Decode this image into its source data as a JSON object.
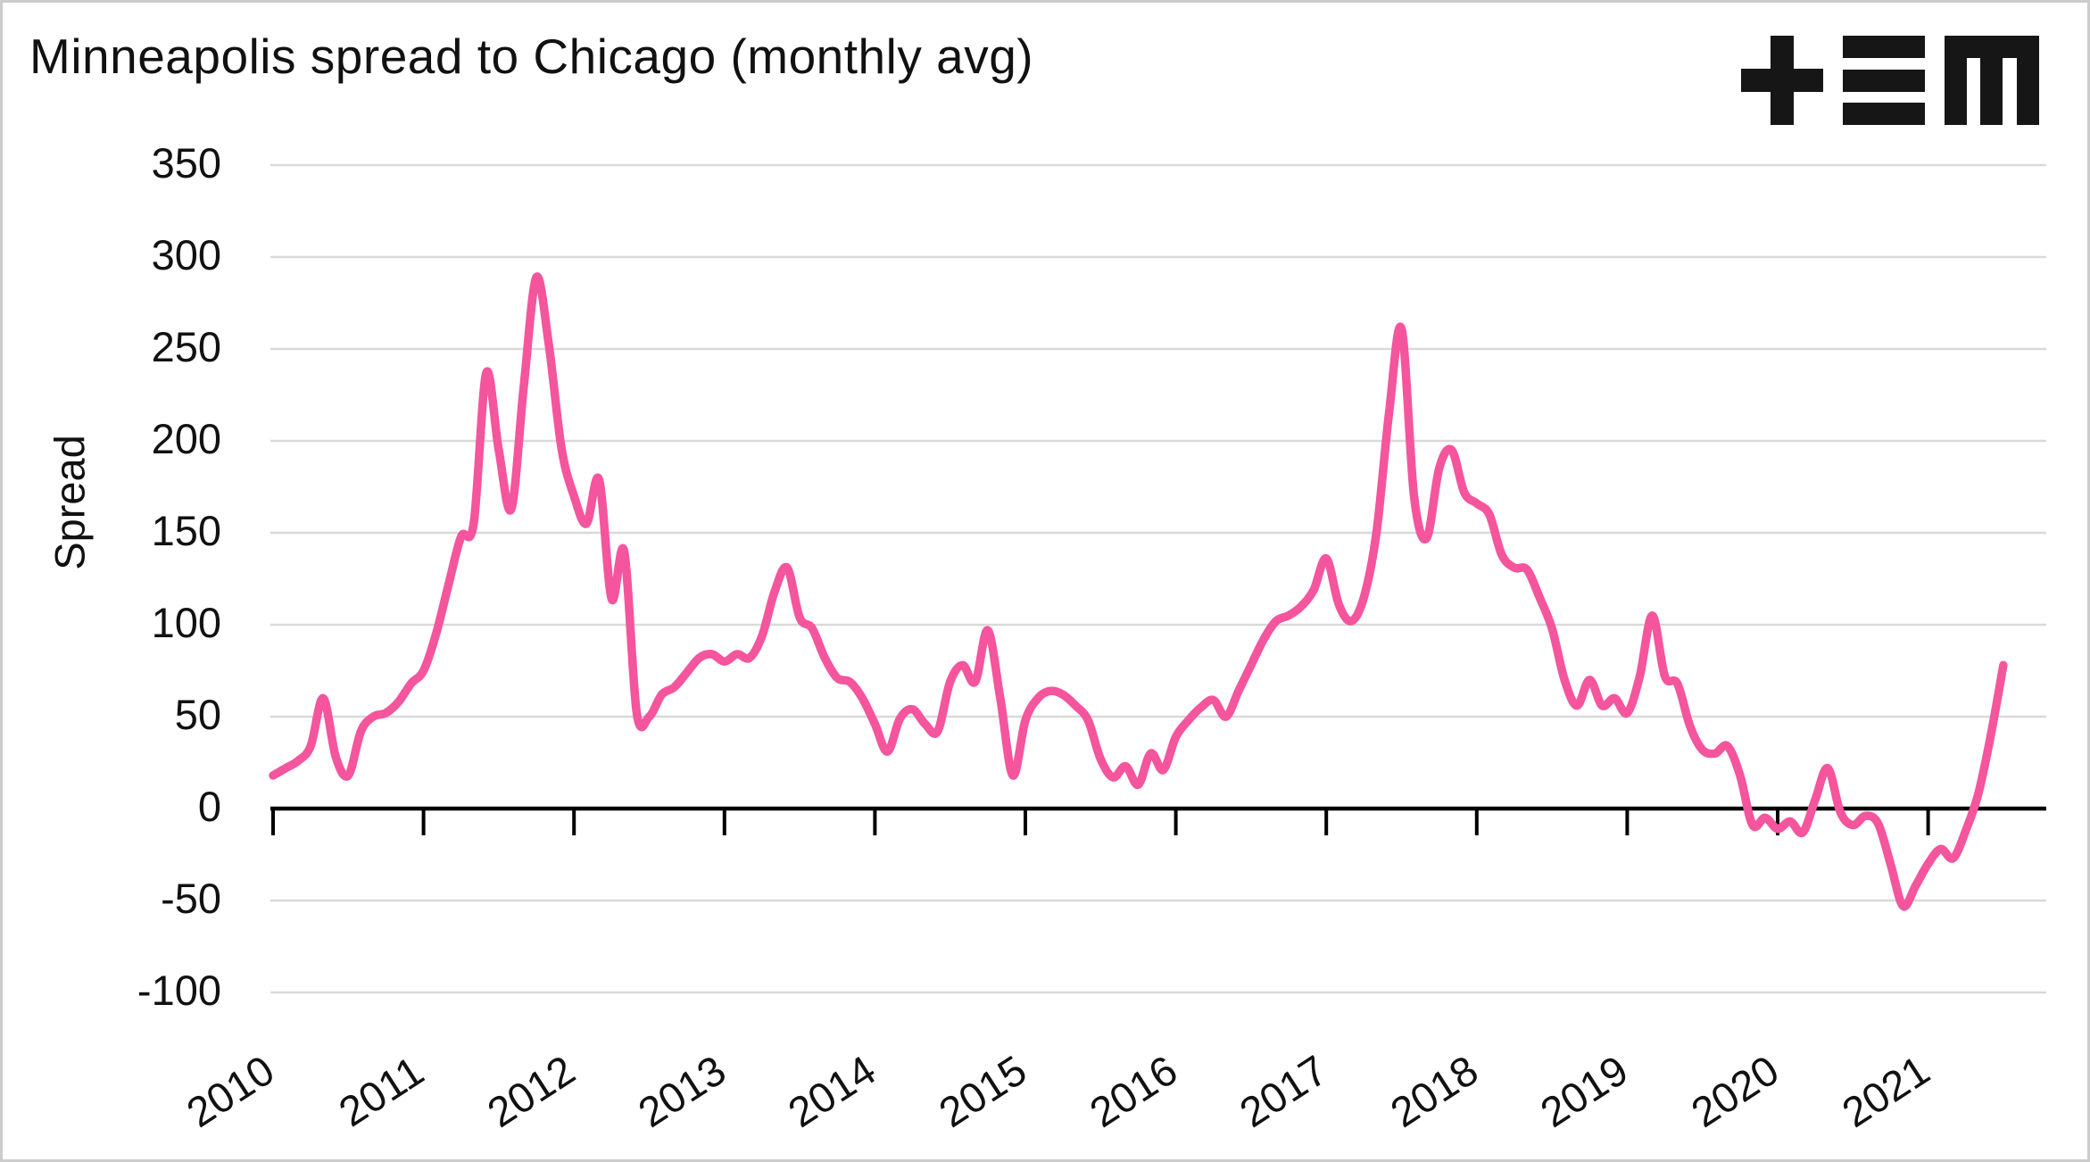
{
  "header": {
    "title": "Minneapolis spread to Chicago (monthly avg)",
    "logo": "tem-logo"
  },
  "colors": {
    "line": "#f4559d",
    "gridline": "#d9d9d9",
    "axis": "#000000",
    "text": "#111111",
    "background": "#ffffff"
  },
  "chart_data": {
    "type": "line",
    "title": "Minneapolis spread to Chicago (monthly avg)",
    "ylabel": "Spread",
    "xlabel": "",
    "ylim": [
      -100,
      350
    ],
    "yticks": [
      350,
      300,
      250,
      200,
      150,
      100,
      50,
      0,
      -50,
      -100
    ],
    "x_tick_labels": [
      "2010",
      "2011",
      "2012",
      "2013",
      "2014",
      "2015",
      "2016",
      "2017",
      "2018",
      "2019",
      "2020",
      "2021"
    ],
    "x_start": "2010-01",
    "frequency": "monthly",
    "grid": "horizontal",
    "legend_position": "none",
    "series": [
      {
        "name": "Minneapolis spread to Chicago",
        "values": [
          18,
          22,
          26,
          34,
          60,
          28,
          18,
          42,
          50,
          52,
          58,
          68,
          75,
          95,
          122,
          148,
          155,
          237,
          195,
          163,
          230,
          289,
          252,
          196,
          170,
          155,
          179,
          114,
          140,
          52,
          50,
          62,
          66,
          74,
          82,
          84,
          80,
          84,
          82,
          94,
          118,
          131,
          104,
          98,
          82,
          71,
          69,
          60,
          46,
          31,
          49,
          54,
          46,
          42,
          69,
          78,
          69,
          97,
          60,
          18,
          48,
          60,
          64,
          62,
          56,
          48,
          27,
          17,
          23,
          13,
          30,
          21,
          39,
          48,
          55,
          59,
          50,
          64,
          78,
          92,
          102,
          105,
          110,
          119,
          136,
          111,
          102,
          115,
          150,
          215,
          261,
          170,
          147,
          185,
          195,
          172,
          166,
          160,
          138,
          131,
          130,
          115,
          98,
          70,
          56,
          70,
          56,
          60,
          52,
          72,
          105,
          72,
          68,
          45,
          32,
          30,
          34,
          18,
          -9,
          -5,
          -11,
          -7,
          -13,
          5,
          22,
          -2,
          -9,
          -4,
          -8,
          -30,
          -53,
          -42,
          -30,
          -22,
          -27,
          -12,
          8,
          40,
          78
        ]
      }
    ]
  }
}
